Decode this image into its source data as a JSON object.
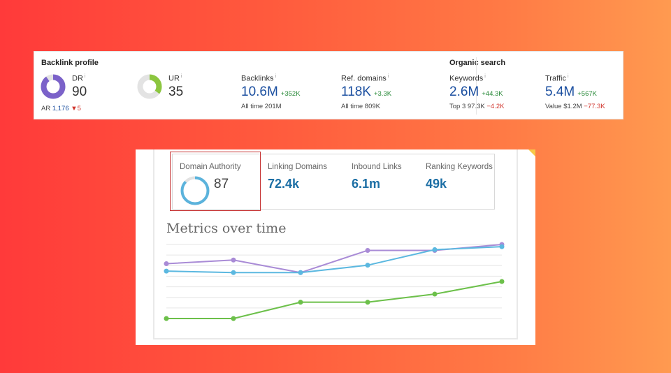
{
  "backlink_profile": {
    "title": "Backlink profile",
    "dr": {
      "label": "DR",
      "info": "i",
      "value": "90",
      "fill": 0.9,
      "color": "#7b62c9",
      "sub_label": "AR",
      "sub_value": "1,176",
      "sub_delta": "5"
    },
    "ur": {
      "label": "UR",
      "info": "i",
      "value": "35",
      "fill": 0.35,
      "color": "#8cc63f"
    },
    "backlinks": {
      "label": "Backlinks",
      "info": "i",
      "value": "10.6M",
      "delta": "+352K",
      "sub_label": "All time",
      "sub_value": "201M"
    },
    "ref_domains": {
      "label": "Ref. domains",
      "info": "i",
      "value": "118K",
      "delta": "+3.3K",
      "sub_label": "All time",
      "sub_value": "809K"
    }
  },
  "organic_search": {
    "title": "Organic search",
    "keywords": {
      "label": "Keywords",
      "info": "i",
      "value": "2.6M",
      "delta": "+44.3K",
      "sub_label": "Top 3",
      "sub_value": "97.3K",
      "sub_delta": "−4.2K"
    },
    "traffic": {
      "label": "Traffic",
      "info": "i",
      "value": "5.4M",
      "delta": "+567K",
      "sub_label": "Value",
      "sub_value": "$1.2M",
      "sub_delta": "−77.3K"
    }
  },
  "moz": {
    "domain_authority": {
      "label": "Domain Authority",
      "value": "87",
      "fill": 0.87,
      "color": "#5bb3dc"
    },
    "linking_domains": {
      "label": "Linking Domains",
      "value": "72.4k"
    },
    "inbound_links": {
      "label": "Inbound Links",
      "value": "6.1m"
    },
    "ranking_keywords": {
      "label": "Ranking Keywords",
      "value": "49k"
    },
    "chart_title": "Metrics over time"
  },
  "chart_data": {
    "type": "line",
    "title": "Metrics over time",
    "x": [
      1,
      2,
      3,
      4,
      5,
      6
    ],
    "ylim": [
      0,
      100
    ],
    "grid": true,
    "series": [
      {
        "color": "#a98bd6",
        "values": [
          74,
          79,
          62,
          92,
          92,
          100
        ]
      },
      {
        "color": "#5bb8e0",
        "values": [
          64,
          62,
          62,
          72,
          93,
          97
        ]
      },
      {
        "color": "#6cc04a",
        "values": [
          0,
          0,
          22,
          22,
          33,
          50
        ]
      }
    ]
  }
}
